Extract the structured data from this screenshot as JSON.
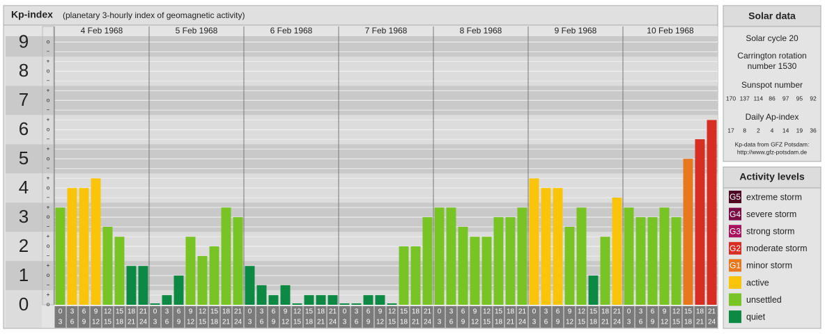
{
  "chart_data": {
    "type": "bar",
    "title": "Kp-index",
    "subtitle": "(planetary 3-hourly index of geomagnetic activity)",
    "days": [
      "4 Feb 1968",
      "5 Feb 1968",
      "6 Feb 1968",
      "7 Feb 1968",
      "8 Feb 1968",
      "9 Feb 1968",
      "10 Feb 1968"
    ],
    "hour_start": [
      "0",
      "3",
      "6",
      "9",
      "12",
      "15",
      "18",
      "21"
    ],
    "hour_end": [
      "3",
      "6",
      "9",
      "12",
      "15",
      "18",
      "21",
      "24"
    ],
    "values": [
      3.33,
      4,
      4,
      4.33,
      2.67,
      2.33,
      1.33,
      1.33,
      0,
      0.33,
      1,
      2.33,
      1.67,
      2,
      3.33,
      3,
      1.33,
      0.67,
      0.33,
      0.67,
      0,
      0.33,
      0.33,
      0.33,
      0,
      0,
      0.33,
      0.33,
      0,
      2,
      2,
      3,
      3.33,
      3.33,
      2.67,
      2.33,
      2.33,
      3,
      3,
      3.33,
      4.33,
      4,
      4,
      2.67,
      3.33,
      1,
      2.33,
      3.67,
      3.33,
      3,
      3,
      3.33,
      3,
      5,
      5.67,
      6.33
    ],
    "colors": [
      "#78c424",
      "#fac40a",
      "#fac40a",
      "#fac40a",
      "#78c424",
      "#78c424",
      "#0c8a44",
      "#0c8a44",
      "#0c8a44",
      "#0c8a44",
      "#0c8a44",
      "#78c424",
      "#78c424",
      "#78c424",
      "#78c424",
      "#78c424",
      "#0c8a44",
      "#0c8a44",
      "#0c8a44",
      "#0c8a44",
      "#0c8a44",
      "#0c8a44",
      "#0c8a44",
      "#0c8a44",
      "#0c8a44",
      "#0c8a44",
      "#0c8a44",
      "#0c8a44",
      "#0c8a44",
      "#78c424",
      "#78c424",
      "#78c424",
      "#78c424",
      "#78c424",
      "#78c424",
      "#78c424",
      "#78c424",
      "#78c424",
      "#78c424",
      "#78c424",
      "#fac40a",
      "#fac40a",
      "#fac40a",
      "#78c424",
      "#78c424",
      "#0c8a44",
      "#78c424",
      "#fac40a",
      "#78c424",
      "#78c424",
      "#78c424",
      "#78c424",
      "#78c424",
      "#e8781e",
      "#d62e22",
      "#d62e22"
    ],
    "ylim": [
      0,
      9.2
    ],
    "yticks": [
      0,
      1,
      2,
      3,
      4,
      5,
      6,
      7,
      8,
      9
    ],
    "sub_labels": {
      "minus": "−",
      "zero": "o",
      "plus": "+"
    },
    "grid": true
  },
  "solar_data": {
    "title": "Solar data",
    "cycle": "Solar cycle 20",
    "carrington": [
      "Carrington rotation",
      "number 1530"
    ],
    "sunspot_title": "Sunspot number",
    "sunspot": [
      170,
      137,
      114,
      86,
      97,
      95,
      92
    ],
    "ap_title": "Daily Ap-index",
    "ap": [
      17,
      8,
      2,
      4,
      14,
      19,
      36
    ],
    "source": [
      "Kp-data from GFZ Potsdam:",
      "http://www.gfz-potsdam.de"
    ]
  },
  "activity_levels": {
    "title": "Activity levels",
    "items": [
      {
        "badge": "G5",
        "label": "extreme storm",
        "color": "#4d0a22"
      },
      {
        "badge": "G4",
        "label": "severe storm",
        "color": "#7a0c44"
      },
      {
        "badge": "G3",
        "label": "strong storm",
        "color": "#a8145c"
      },
      {
        "badge": "G2",
        "label": "moderate storm",
        "color": "#d62e22"
      },
      {
        "badge": "G1",
        "label": "minor storm",
        "color": "#e8781e"
      },
      {
        "label": "active",
        "color": "#fac40a"
      },
      {
        "label": "unsettled",
        "color": "#78c424"
      },
      {
        "label": "quiet",
        "color": "#0c8a44"
      }
    ]
  }
}
